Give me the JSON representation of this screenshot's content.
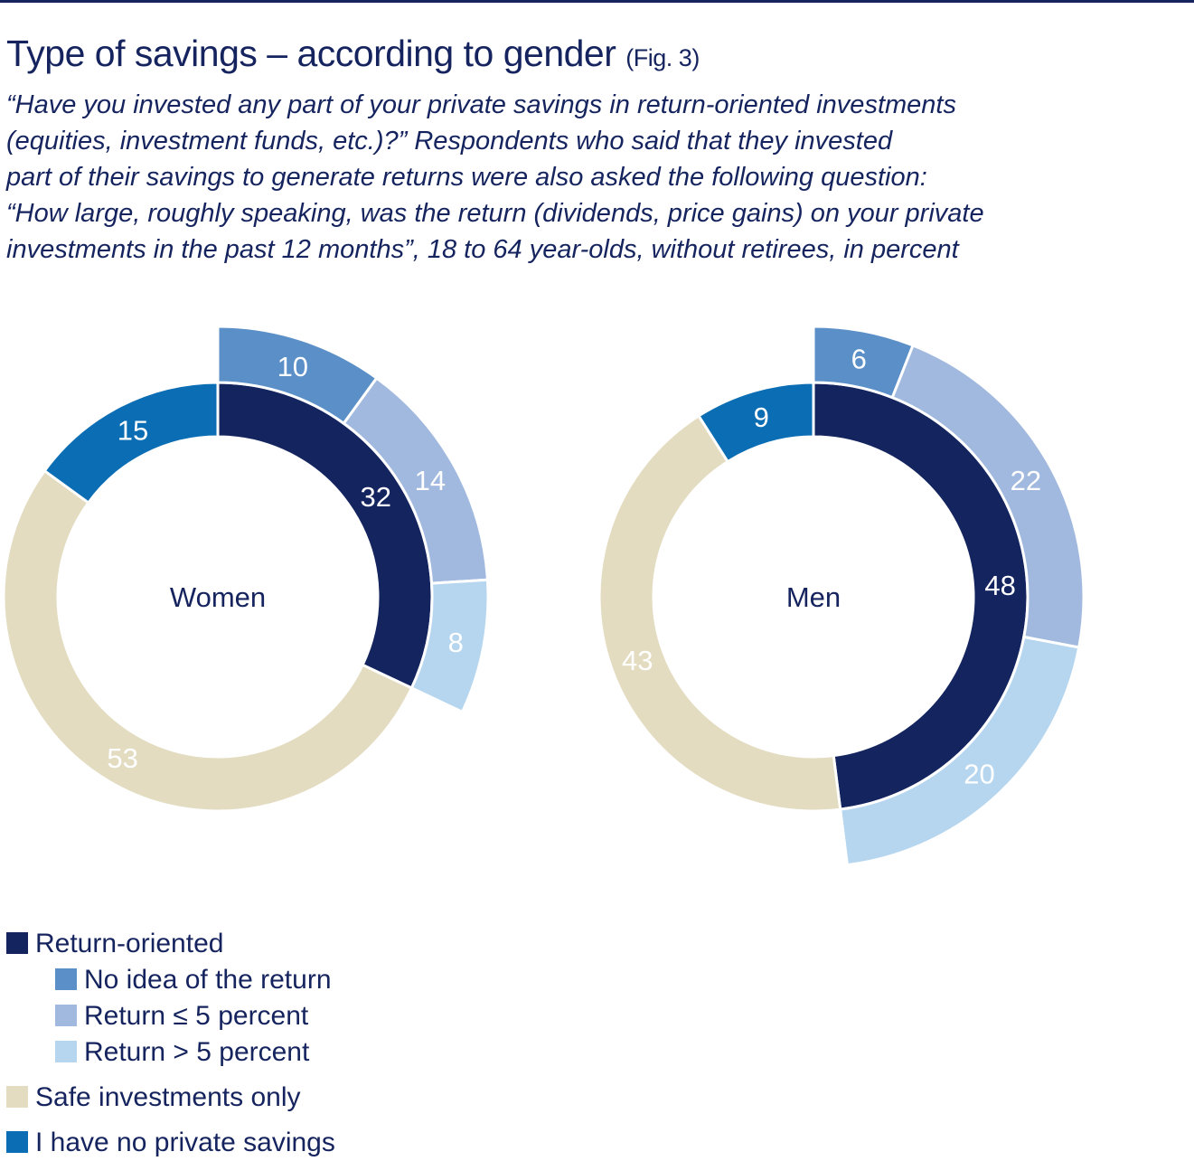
{
  "header": {
    "title": "Type of savings – according to gender",
    "fig": "(Fig. 3)",
    "subtitle_lines": [
      "“Have you invested any part of your private savings in return-oriented investments",
      "(equities, investment funds, etc.)?” Respondents who said that they invested",
      "part of their savings to generate returns were also asked the following question:",
      "“How large, roughly speaking, was the return (dividends, price gains) on your private",
      "investments in the past 12 months”, 18 to 64 year-olds, without retirees, in percent"
    ]
  },
  "colors": {
    "return_oriented": "#14245f",
    "no_idea": "#5a8fc8",
    "return_le5": "#a1b9de",
    "return_gt5": "#b6d6ef",
    "safe": "#e3dcc1",
    "no_savings": "#0b6db3"
  },
  "chart_data": [
    {
      "type": "donut",
      "label": "Women",
      "inner": [
        {
          "category": "Return-oriented",
          "value": 32
        },
        {
          "category": "Safe investments only",
          "value": 53
        },
        {
          "category": "I have no private savings",
          "value": 15
        }
      ],
      "outer": [
        {
          "category": "No idea of the return",
          "value": 10
        },
        {
          "category": "Return ≤ 5 percent",
          "value": 14
        },
        {
          "category": "Return > 5 percent",
          "value": 8
        }
      ]
    },
    {
      "type": "donut",
      "label": "Men",
      "inner": [
        {
          "category": "Return-oriented",
          "value": 48
        },
        {
          "category": "Safe investments only",
          "value": 43
        },
        {
          "category": "I have no private savings",
          "value": 9
        }
      ],
      "outer": [
        {
          "category": "No idea of the return",
          "value": 6
        },
        {
          "category": "Return ≤ 5 percent",
          "value": 22
        },
        {
          "category": "Return > 5 percent",
          "value": 20
        }
      ]
    }
  ],
  "legend": [
    {
      "label": "Return-oriented",
      "color_key": "return_oriented"
    },
    {
      "label": "No idea of the return",
      "color_key": "no_idea"
    },
    {
      "label": "Return ≤ 5 percent",
      "color_key": "return_le5"
    },
    {
      "label": "Return > 5 percent",
      "color_key": "return_gt5"
    },
    {
      "label": "Safe investments only",
      "color_key": "safe"
    },
    {
      "label": "I have no private savings",
      "color_key": "no_savings"
    }
  ]
}
